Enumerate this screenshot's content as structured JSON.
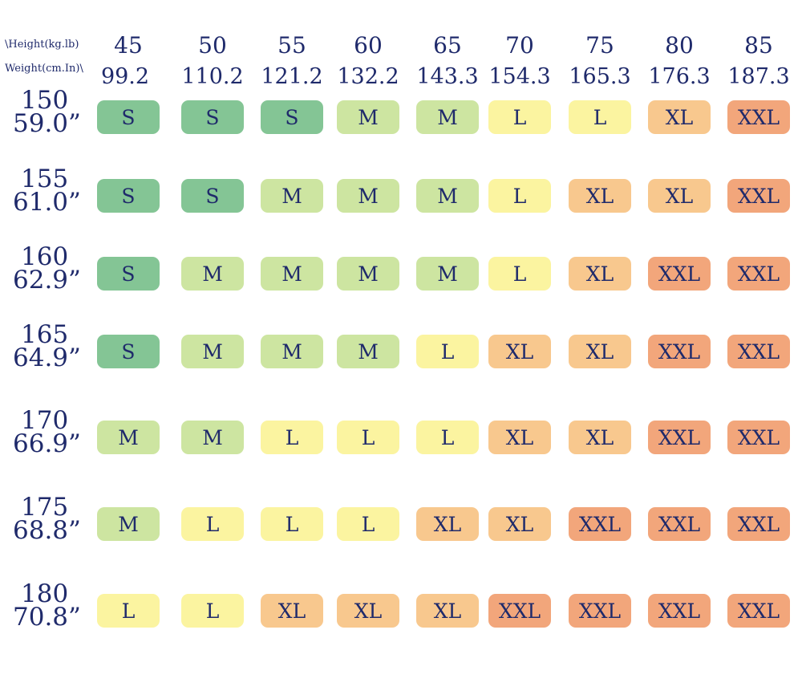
{
  "corner": {
    "top_label": "\\Height(kg.lb)",
    "bottom_label": "Weight(cm.In)\\"
  },
  "columns": [
    {
      "kg": "45",
      "lb": "99.2"
    },
    {
      "kg": "50",
      "lb": "110.2"
    },
    {
      "kg": "55",
      "lb": "121.2"
    },
    {
      "kg": "60",
      "lb": "132.2"
    },
    {
      "kg": "65",
      "lb": "143.3"
    },
    {
      "kg": "70",
      "lb": "154.3"
    },
    {
      "kg": "75",
      "lb": "165.3"
    },
    {
      "kg": "80",
      "lb": "176.3"
    },
    {
      "kg": "85",
      "lb": "187.3"
    }
  ],
  "rows": [
    {
      "cm": "150",
      "inch": "59.0”",
      "sizes": [
        "S",
        "S",
        "S",
        "M",
        "M",
        "L",
        "L",
        "XL",
        "XXL"
      ]
    },
    {
      "cm": "155",
      "inch": "61.0”",
      "sizes": [
        "S",
        "S",
        "M",
        "M",
        "M",
        "L",
        "XL",
        "XL",
        "XXL"
      ]
    },
    {
      "cm": "160",
      "inch": "62.9”",
      "sizes": [
        "S",
        "M",
        "M",
        "M",
        "M",
        "L",
        "XL",
        "XXL",
        "XXL"
      ]
    },
    {
      "cm": "165",
      "inch": "64.9”",
      "sizes": [
        "S",
        "M",
        "M",
        "M",
        "L",
        "XL",
        "XL",
        "XXL",
        "XXL"
      ]
    },
    {
      "cm": "170",
      "inch": "66.9”",
      "sizes": [
        "M",
        "M",
        "L",
        "L",
        "L",
        "XL",
        "XL",
        "XXL",
        "XXL"
      ]
    },
    {
      "cm": "175",
      "inch": "68.8”",
      "sizes": [
        "M",
        "L",
        "L",
        "L",
        "XL",
        "XL",
        "XXL",
        "XXL",
        "XXL"
      ]
    },
    {
      "cm": "180",
      "inch": "70.8”",
      "sizes": [
        "L",
        "L",
        "XL",
        "XL",
        "XL",
        "XXL",
        "XXL",
        "XXL",
        "XXL"
      ]
    }
  ],
  "size_colors": {
    "S": "#84c595",
    "M": "#cde5a1",
    "L": "#fbf4a0",
    "XL": "#f8c88e",
    "XXL": "#f2a67b"
  }
}
